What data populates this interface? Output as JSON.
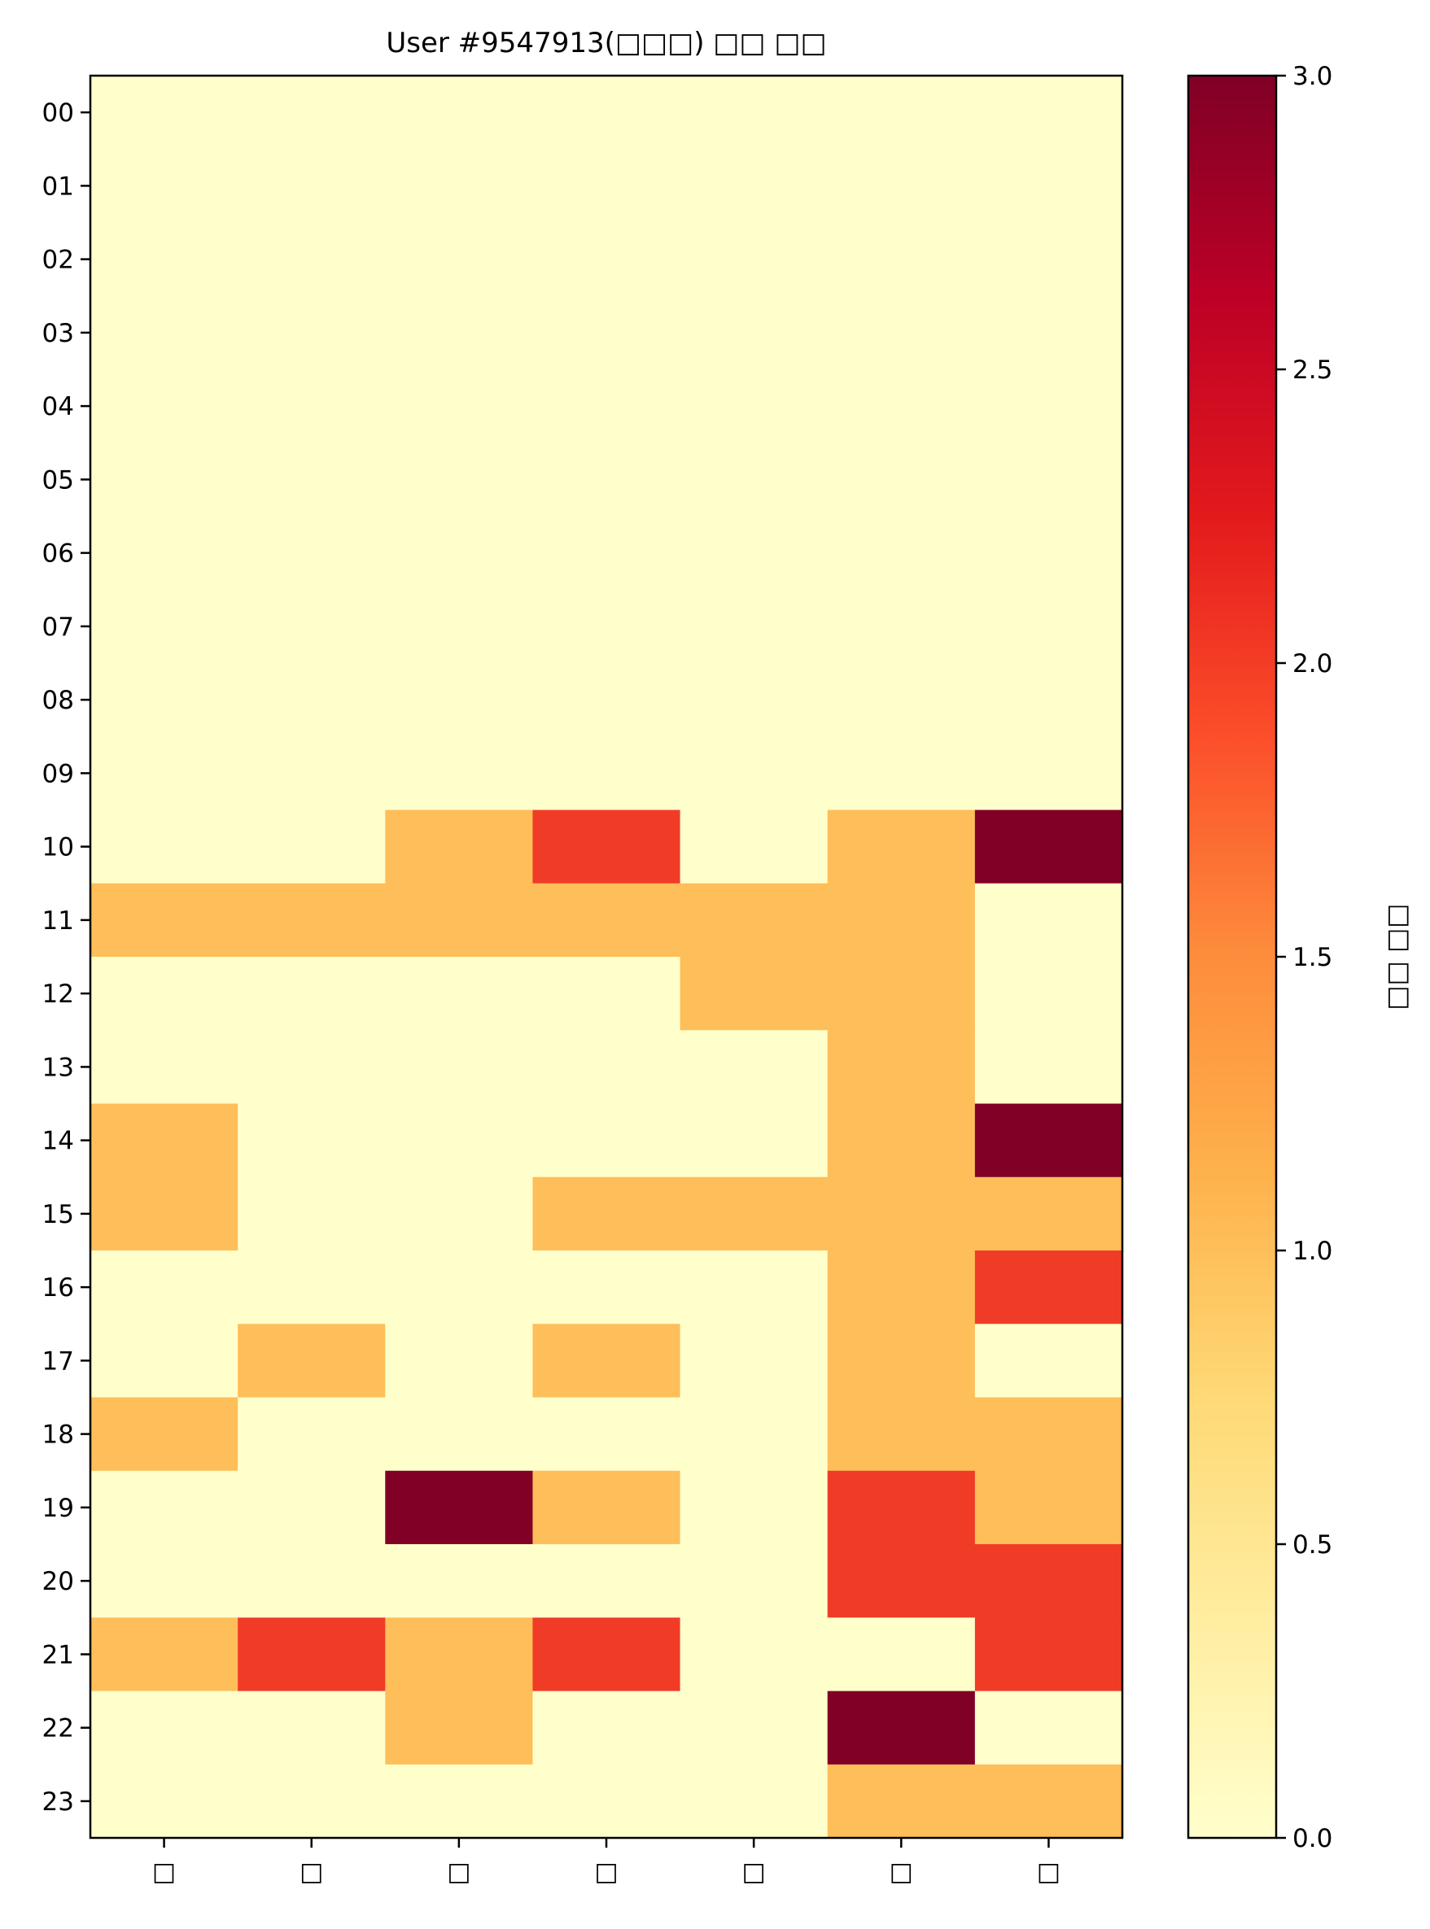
{
  "chart_data": {
    "type": "heatmap",
    "title": "User #9547913(□□□) □□ □□",
    "xlabel": "",
    "ylabel": "",
    "x_categories": [
      "□",
      "□",
      "□",
      "□",
      "□",
      "□",
      "□"
    ],
    "y_categories": [
      "00",
      "01",
      "02",
      "03",
      "04",
      "05",
      "06",
      "07",
      "08",
      "09",
      "10",
      "11",
      "12",
      "13",
      "14",
      "15",
      "16",
      "17",
      "18",
      "19",
      "20",
      "21",
      "22",
      "23"
    ],
    "values": [
      [
        0,
        0,
        0,
        0,
        0,
        0,
        0
      ],
      [
        0,
        0,
        0,
        0,
        0,
        0,
        0
      ],
      [
        0,
        0,
        0,
        0,
        0,
        0,
        0
      ],
      [
        0,
        0,
        0,
        0,
        0,
        0,
        0
      ],
      [
        0,
        0,
        0,
        0,
        0,
        0,
        0
      ],
      [
        0,
        0,
        0,
        0,
        0,
        0,
        0
      ],
      [
        0,
        0,
        0,
        0,
        0,
        0,
        0
      ],
      [
        0,
        0,
        0,
        0,
        0,
        0,
        0
      ],
      [
        0,
        0,
        0,
        0,
        0,
        0,
        0
      ],
      [
        0,
        0,
        0,
        0,
        0,
        0,
        0
      ],
      [
        0,
        0,
        1,
        2,
        0,
        1,
        3
      ],
      [
        1,
        1,
        1,
        1,
        1,
        1,
        0
      ],
      [
        0,
        0,
        0,
        0,
        1,
        1,
        0
      ],
      [
        0,
        0,
        0,
        0,
        0,
        1,
        0
      ],
      [
        1,
        0,
        0,
        0,
        0,
        1,
        3
      ],
      [
        1,
        0,
        0,
        1,
        1,
        1,
        1
      ],
      [
        0,
        0,
        0,
        0,
        0,
        1,
        2
      ],
      [
        0,
        1,
        0,
        1,
        0,
        1,
        0
      ],
      [
        1,
        0,
        0,
        0,
        0,
        1,
        1
      ],
      [
        0,
        0,
        3,
        1,
        0,
        2,
        1
      ],
      [
        0,
        0,
        0,
        0,
        0,
        2,
        2
      ],
      [
        1,
        2,
        1,
        2,
        0,
        0,
        2
      ],
      [
        0,
        0,
        1,
        0,
        0,
        3,
        0
      ],
      [
        0,
        0,
        0,
        0,
        0,
        1,
        1
      ]
    ],
    "colormap": "YlOrRd",
    "vmin": 0.0,
    "vmax": 3.0,
    "colorbar": {
      "label": "□□ □□",
      "ticks": [
        0.0,
        0.5,
        1.0,
        1.5,
        2.0,
        2.5,
        3.0
      ],
      "tick_labels": [
        "0.0",
        "0.5",
        "1.0",
        "1.5",
        "2.0",
        "2.5",
        "3.0"
      ]
    },
    "colors": {
      "0": "#ffffcc",
      "1": "#febe5a",
      "2": "#f03c27",
      "3": "#800026"
    }
  }
}
